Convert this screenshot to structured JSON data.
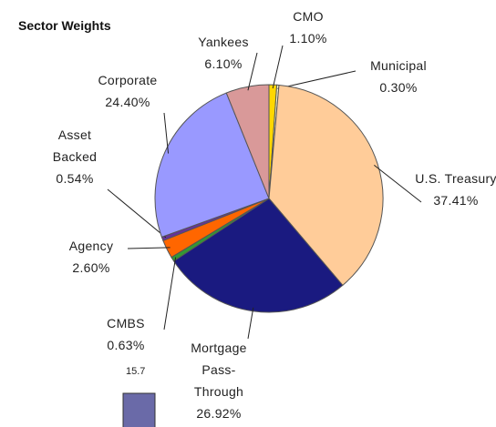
{
  "chart_data": {
    "type": "pie",
    "title": "Sector Weights",
    "categories": [
      "CMO",
      "Municipal",
      "U.S. Treasury",
      "Mortgage Pass-Through",
      "CMBS",
      "Agency",
      "Asset Backed",
      "Corporate",
      "Yankees"
    ],
    "values": [
      1.1,
      0.3,
      37.41,
      26.92,
      0.63,
      2.6,
      0.54,
      24.4,
      6.1
    ],
    "value_labels": [
      "1.10%",
      "0.30%",
      "37.41%",
      "26.92%",
      "0.63%",
      "2.60%",
      "0.54%",
      "24.40%",
      "6.10%"
    ],
    "colors": [
      "#ffd700",
      "#ffffcc",
      "#ffcc99",
      "#1a1a80",
      "#339933",
      "#ff6600",
      "#663399",
      "#9999ff",
      "#d99999"
    ]
  },
  "bar_fragment": {
    "values": [
      15.7
    ],
    "color": "#6a6aa8"
  }
}
